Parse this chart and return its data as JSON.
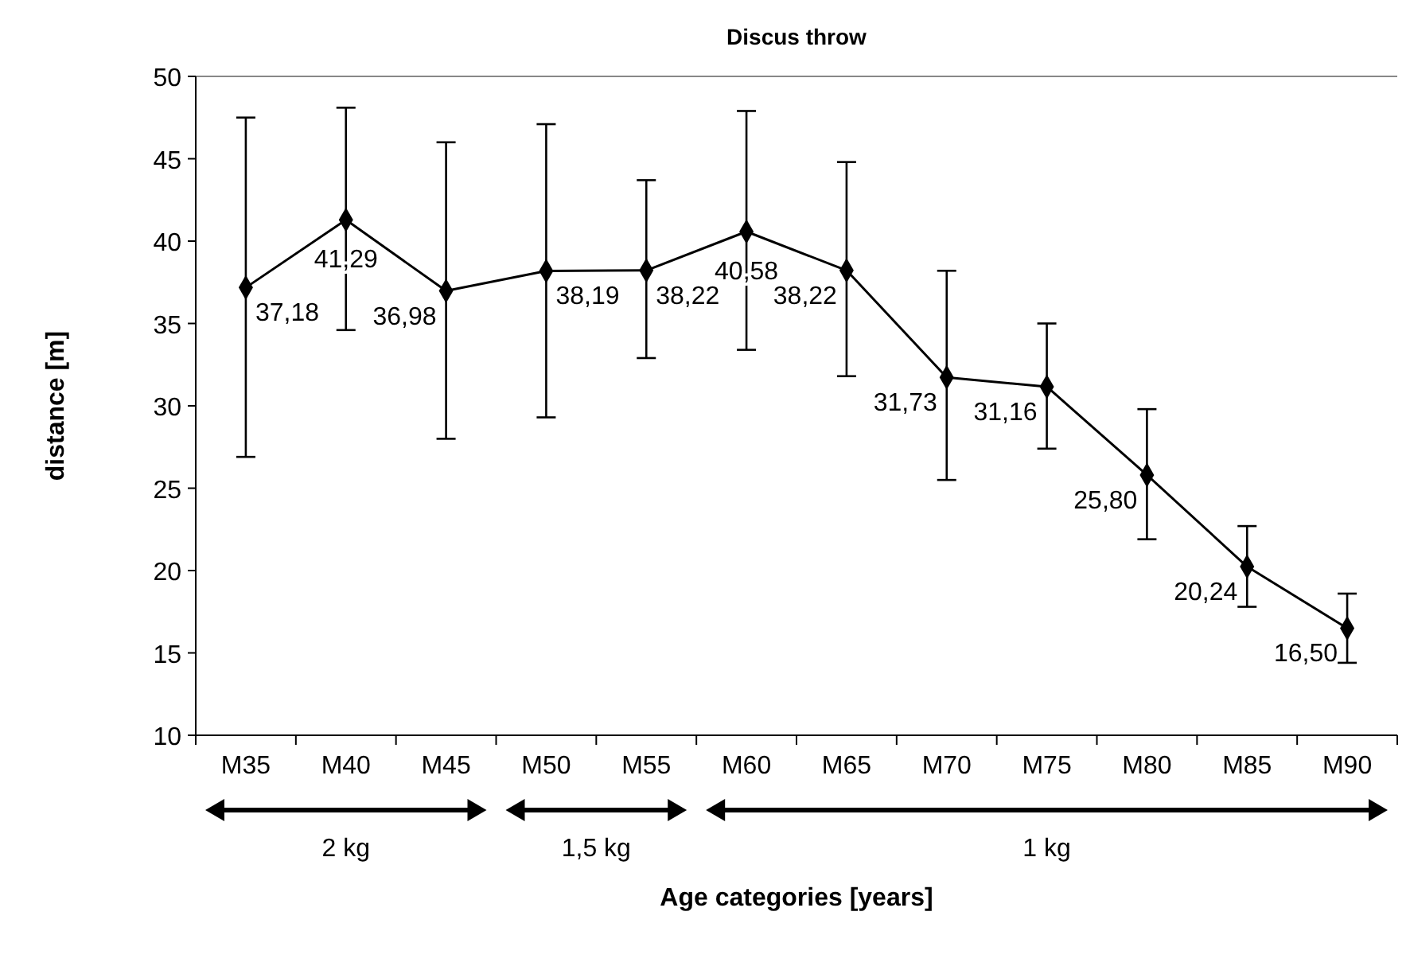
{
  "chart_data": {
    "type": "line",
    "title": "Discus throw",
    "xlabel": "Age categories [years]",
    "ylabel": "distance [m]",
    "categories": [
      "M35",
      "M40",
      "M45",
      "M50",
      "M55",
      "M60",
      "M65",
      "M70",
      "M75",
      "M80",
      "M85",
      "M90"
    ],
    "series": [
      {
        "color": "#000000",
        "values": [
          37.18,
          41.29,
          36.98,
          38.19,
          38.22,
          40.58,
          38.22,
          31.73,
          31.16,
          25.8,
          20.24,
          16.5
        ],
        "value_labels": [
          "37,18",
          "41,29",
          "36,98",
          "38,19",
          "38,22",
          "40,58",
          "38,22",
          "31,73",
          "31,16",
          "25,80",
          "20,24",
          "16,50"
        ],
        "errors": [
          [
            26.9,
            47.5
          ],
          [
            34.6,
            48.1
          ],
          [
            28.0,
            46.0
          ],
          [
            29.3,
            47.1
          ],
          [
            32.9,
            43.7
          ],
          [
            33.4,
            47.9
          ],
          [
            31.8,
            44.8
          ],
          [
            25.5,
            38.2
          ],
          [
            27.4,
            35.0
          ],
          [
            21.9,
            29.8
          ],
          [
            17.8,
            22.7
          ],
          [
            14.4,
            18.6
          ]
        ]
      }
    ],
    "ylim": [
      10,
      50
    ],
    "yticks": [
      10,
      15,
      20,
      25,
      30,
      35,
      40,
      45,
      50
    ],
    "marker": "diamond",
    "line_style": "solid",
    "annotations": [
      "2 kg",
      "1,5 kg",
      "1 kg"
    ]
  }
}
